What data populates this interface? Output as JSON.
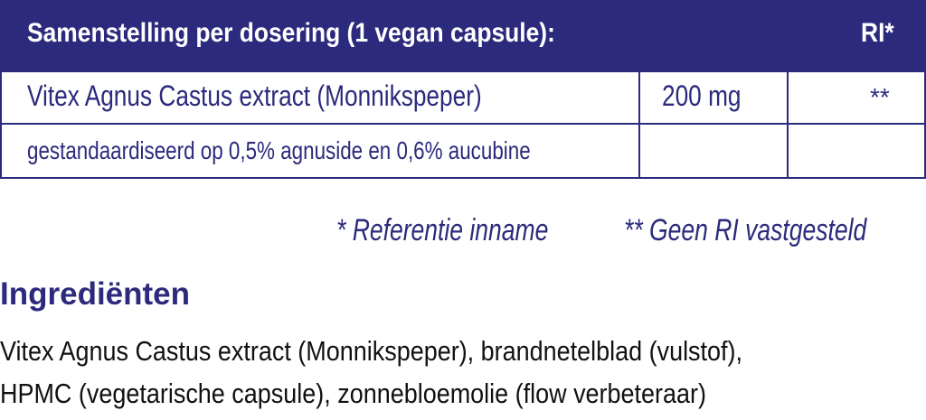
{
  "table": {
    "header": [
      "Samenstelling per dosering (1 vegan capsule):",
      "RI*"
    ],
    "rows": [
      [
        "Vitex Agnus Castus extract (Monnikspeper)",
        "200 mg",
        "**"
      ],
      [
        "gestandaardiseerd op 0,5% agnuside en 0,6% aucubine"
      ]
    ]
  },
  "footnotes": [
    "* Referentie inname",
    "** Geen RI vastgesteld"
  ],
  "ingredients": {
    "title": "Ingrediënten",
    "lines": [
      "Vitex Agnus Castus extract (Monnikspeper), brandnetelblad (vulstof),",
      "HPMC (vegetarische capsule), zonnebloemolie (flow verbeteraar)"
    ]
  }
}
